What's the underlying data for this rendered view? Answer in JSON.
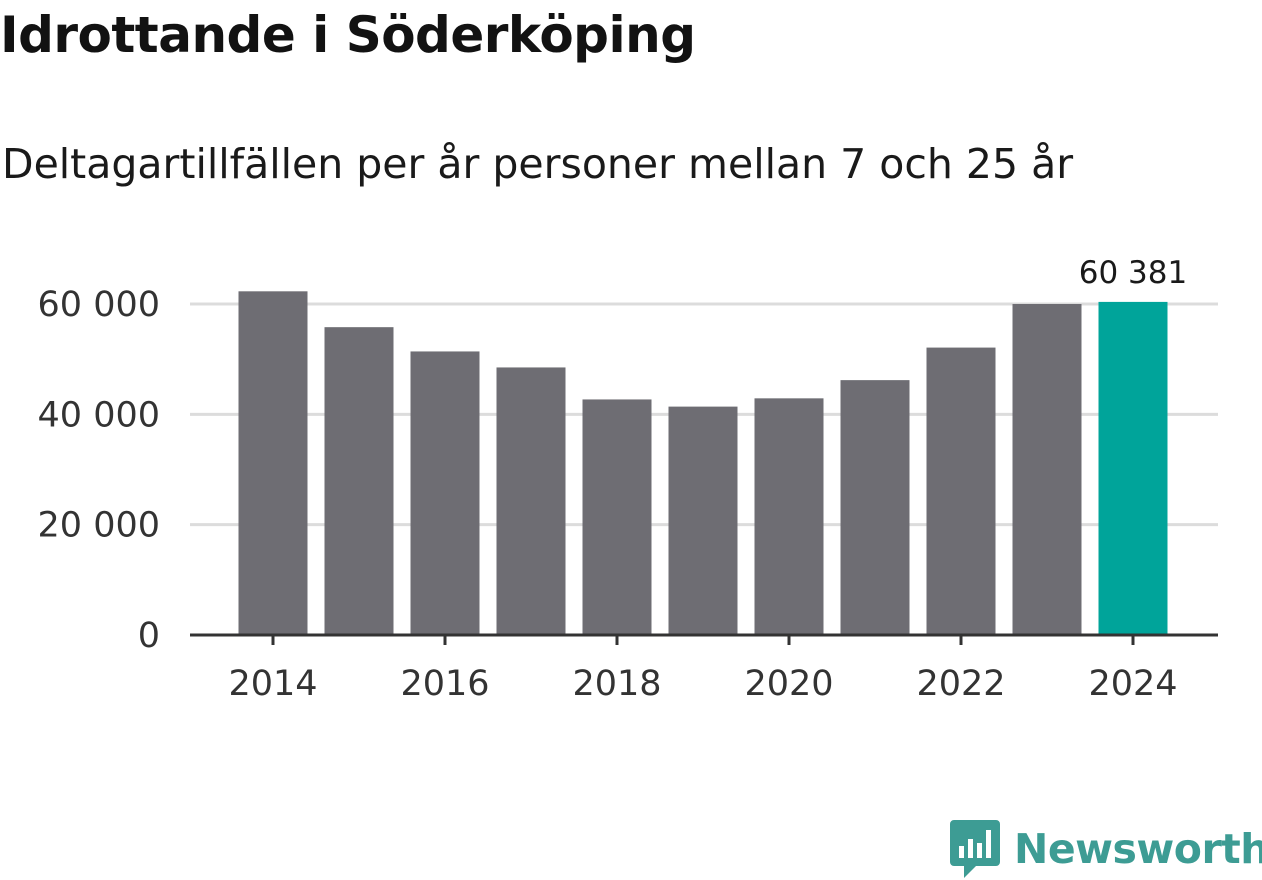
{
  "title": "Idrottande i Söderköping",
  "subtitle": "Deltagartillfällen per år personer mellan 7 och 25 år",
  "brand": {
    "name": "Newsworthy",
    "icon": "newsworthy-bar-chart-logo-icon",
    "color": "#3d9c94"
  },
  "colors": {
    "bar": "#6e6d73",
    "highlight": "#00a49a",
    "grid": "#dcdcdc",
    "axis": "#333333"
  },
  "chart_data": {
    "type": "bar",
    "title": "Idrottande i Söderköping",
    "subtitle": "Deltagartillfällen per år personer mellan 7 och 25 år",
    "categories": [
      "2014",
      "2015",
      "2016",
      "2017",
      "2018",
      "2019",
      "2020",
      "2021",
      "2022",
      "2023",
      "2024"
    ],
    "values": [
      62300,
      55800,
      51400,
      48500,
      42700,
      41400,
      42900,
      46200,
      52100,
      60000,
      60381
    ],
    "highlight_index": 10,
    "data_labels": [
      {
        "index": 10,
        "text": "60 381"
      }
    ],
    "x_tick_labels": [
      "2014",
      "2016",
      "2018",
      "2020",
      "2022",
      "2024"
    ],
    "y_ticks": [
      0,
      20000,
      40000,
      60000
    ],
    "y_tick_labels": [
      "0",
      "20 000",
      "40 000",
      "60 000"
    ],
    "ylim": [
      0,
      60381
    ],
    "xlabel": "",
    "ylabel": "",
    "grid": true,
    "legend": "none"
  }
}
